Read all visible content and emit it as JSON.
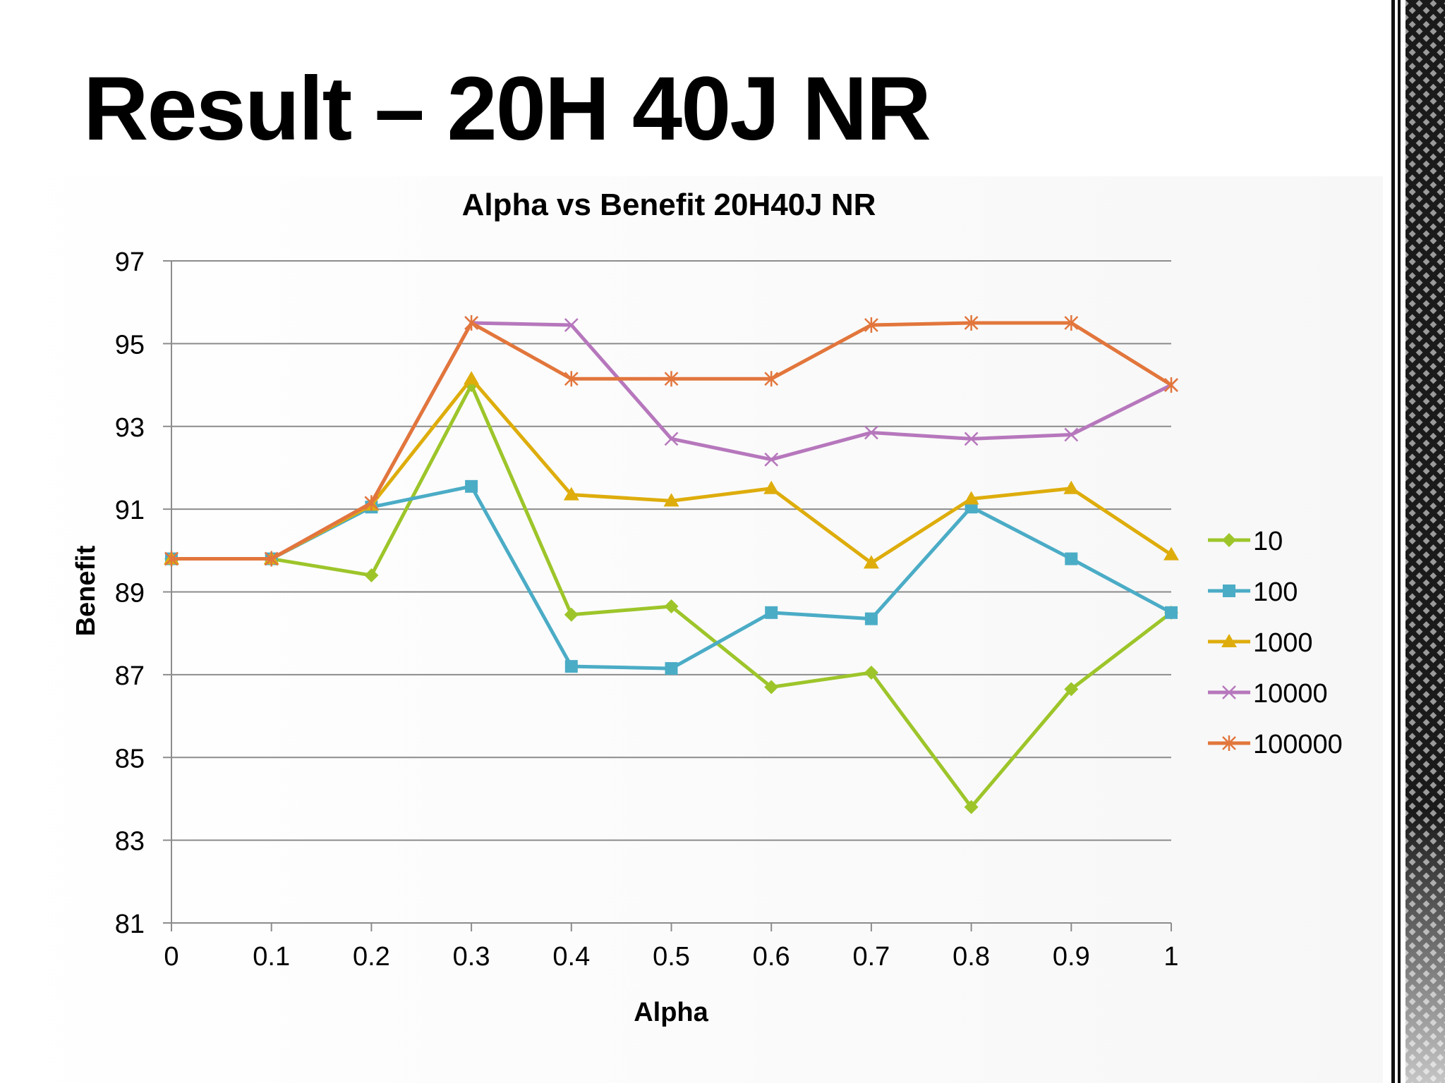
{
  "slide": {
    "title": "Result – 20H 40J NR"
  },
  "chart_data": {
    "type": "line",
    "title": "Alpha vs Benefit 20H40J NR",
    "xlabel": "Alpha",
    "ylabel": "Benefit",
    "x": [
      0,
      0.1,
      0.2,
      0.3,
      0.4,
      0.5,
      0.6,
      0.7,
      0.8,
      0.9,
      1
    ],
    "x_tick_labels": [
      "0",
      "0.1",
      "0.2",
      "0.3",
      "0.4",
      "0.5",
      "0.6",
      "0.7",
      "0.8",
      "0.9",
      "1"
    ],
    "ylim": [
      81,
      97
    ],
    "y_ticks": [
      81,
      83,
      85,
      87,
      89,
      91,
      93,
      95,
      97
    ],
    "grid": true,
    "legend_position": "right",
    "series": [
      {
        "name": "10",
        "color": "#9DC52A",
        "marker": "diamond",
        "values": [
          89.8,
          89.8,
          89.4,
          94.0,
          88.45,
          88.65,
          86.7,
          87.05,
          83.8,
          86.65,
          88.5
        ]
      },
      {
        "name": "100",
        "color": "#4BACC6",
        "marker": "square",
        "values": [
          89.8,
          89.8,
          91.05,
          91.55,
          87.2,
          87.15,
          88.5,
          88.35,
          91.05,
          89.8,
          88.5
        ]
      },
      {
        "name": "1000",
        "color": "#DEAD0C",
        "marker": "triangle",
        "values": [
          89.8,
          89.8,
          91.1,
          94.15,
          91.35,
          91.2,
          91.5,
          89.7,
          91.25,
          91.5,
          89.9
        ]
      },
      {
        "name": "10000",
        "color": "#B677BC",
        "marker": "x",
        "values": [
          89.8,
          89.8,
          91.15,
          95.5,
          95.45,
          92.7,
          92.2,
          92.85,
          92.7,
          92.8,
          94.0
        ]
      },
      {
        "name": "100000",
        "color": "#E2763C",
        "marker": "star",
        "values": [
          89.8,
          89.8,
          91.15,
          95.5,
          94.15,
          94.15,
          94.15,
          95.45,
          95.5,
          95.5,
          94.0
        ]
      }
    ]
  }
}
